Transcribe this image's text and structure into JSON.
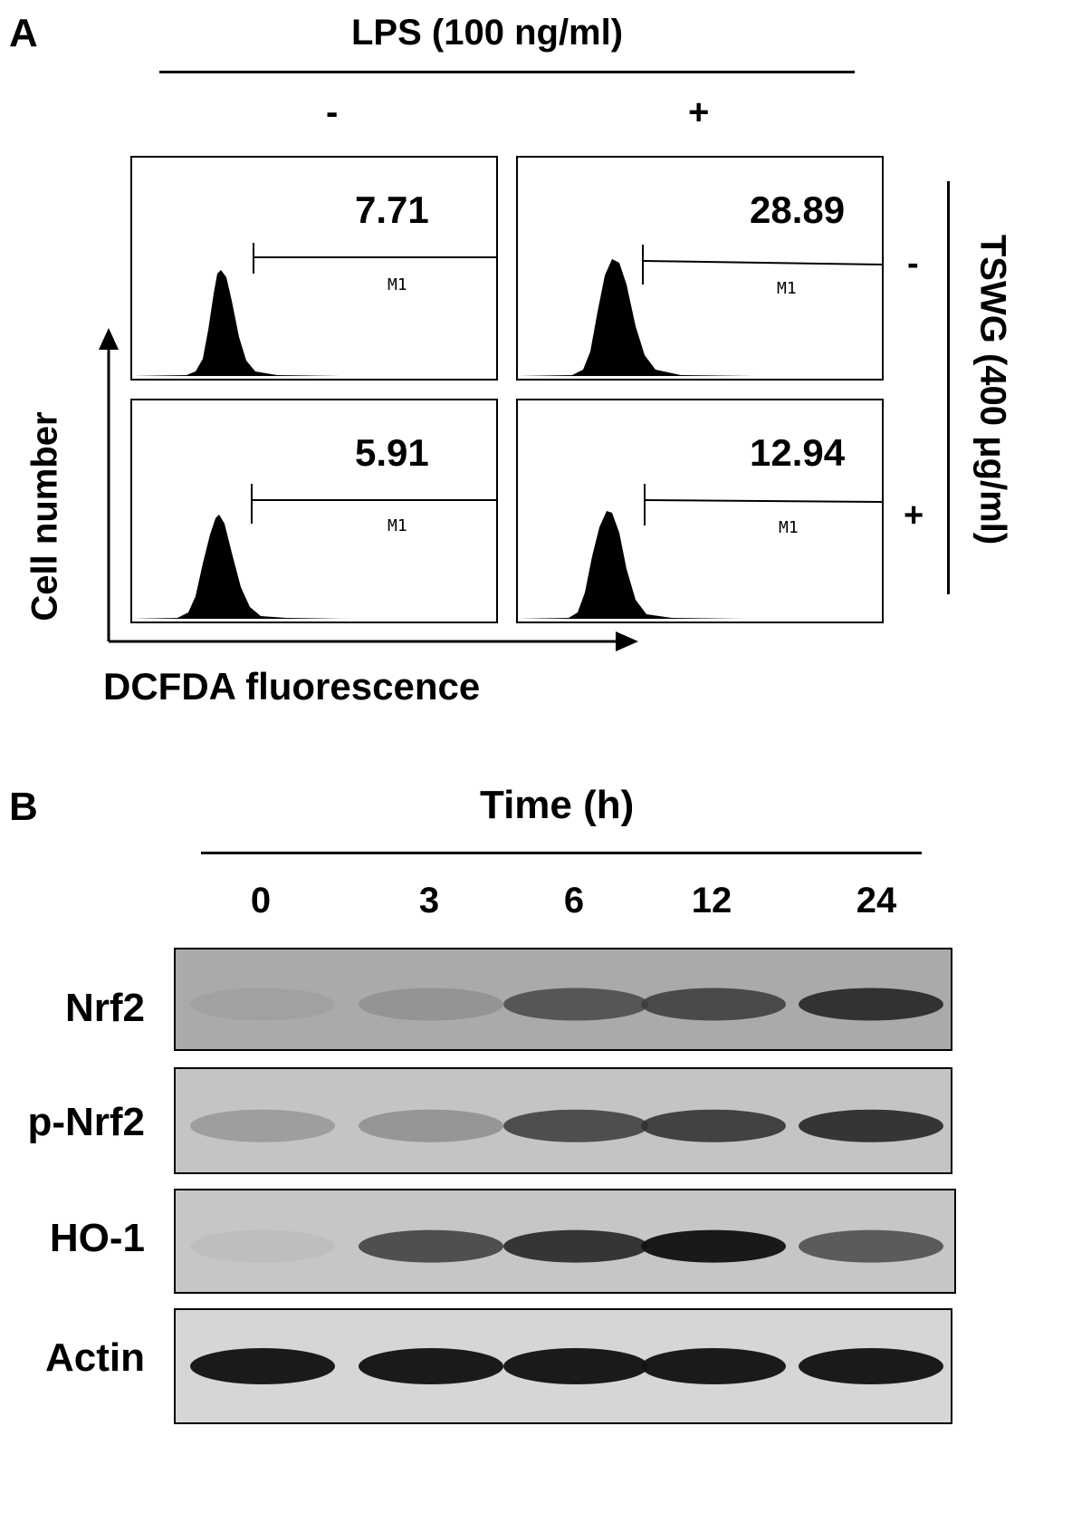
{
  "panelA": {
    "letter": "A",
    "lps_label": "LPS (100 ng/ml)",
    "lps_minus": "-",
    "lps_plus": "+",
    "tswg_label": "TSWG (400 μg/ml)",
    "tswg_minus": "-",
    "tswg_plus": "+",
    "y_axis": "Cell number",
    "x_axis": "DCFDA fluorescence",
    "gate": "M1",
    "histograms": [
      {
        "lps": "-",
        "tswg": "-",
        "percent": "7.71"
      },
      {
        "lps": "+",
        "tswg": "-",
        "percent": "28.89"
      },
      {
        "lps": "-",
        "tswg": "+",
        "percent": "5.91"
      },
      {
        "lps": "+",
        "tswg": "+",
        "percent": "12.94"
      }
    ]
  },
  "panelB": {
    "letter": "B",
    "time_label": "Time (h)",
    "times": [
      "0",
      "3",
      "6",
      "12",
      "24"
    ],
    "blots": [
      {
        "label": "Nrf2",
        "intensities": [
          0.25,
          0.35,
          0.7,
          0.75,
          0.85
        ]
      },
      {
        "label": "p-Nrf2",
        "intensities": [
          0.35,
          0.4,
          0.75,
          0.8,
          0.85
        ]
      },
      {
        "label": "HO-1",
        "intensities": [
          0.1,
          0.75,
          0.85,
          0.95,
          0.7
        ]
      },
      {
        "label": "Actin",
        "intensities": [
          0.95,
          0.95,
          0.95,
          0.95,
          0.95
        ]
      }
    ]
  }
}
